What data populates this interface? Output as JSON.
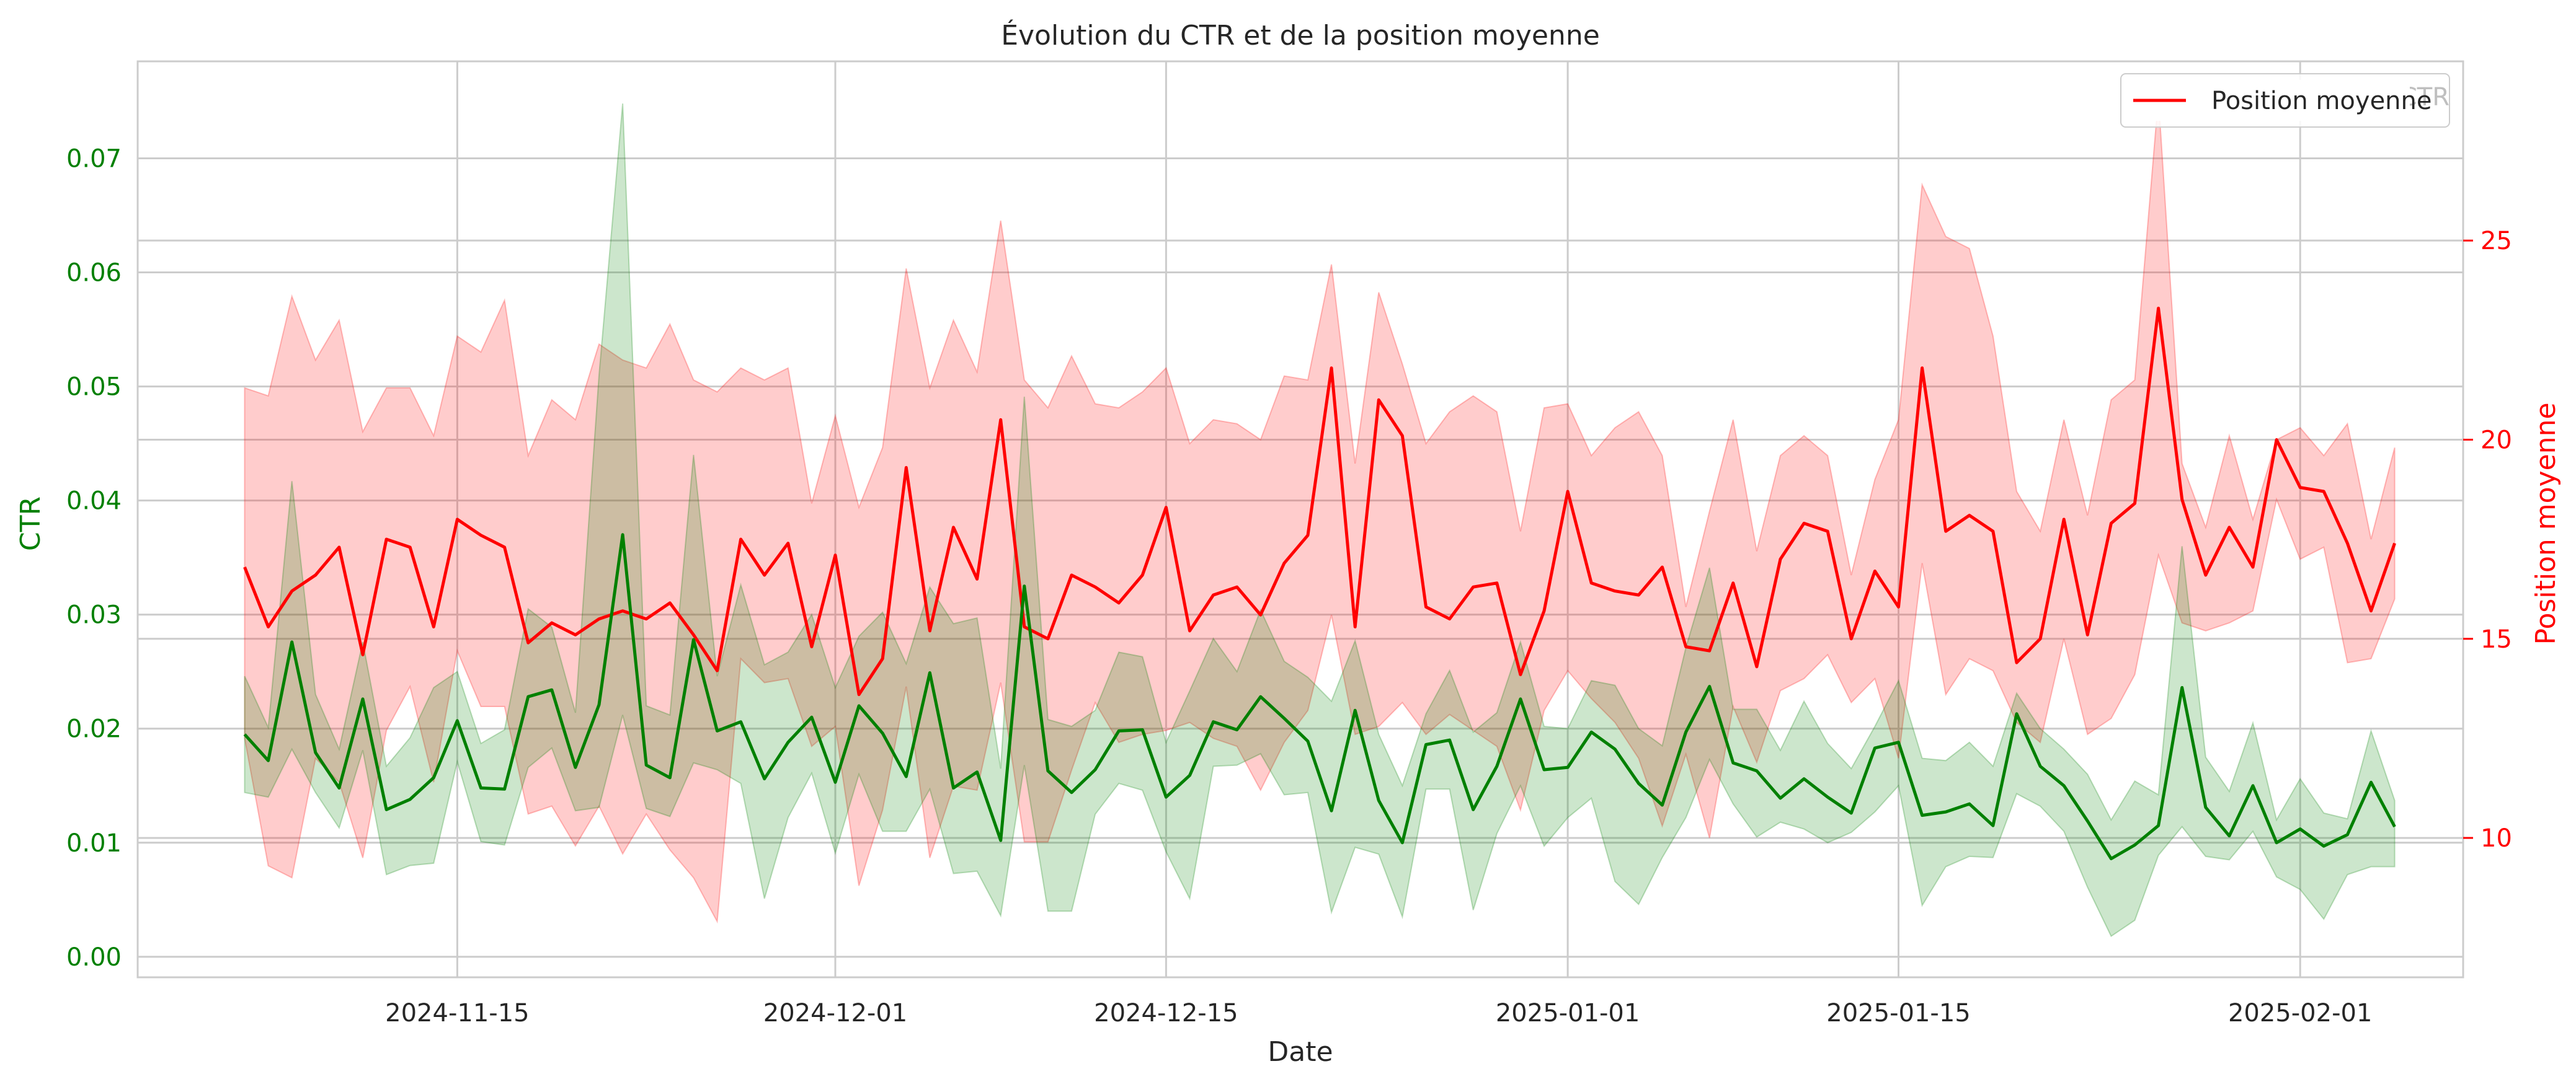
{
  "chart_data": {
    "type": "line",
    "title": "Évolution du CTR et de la position moyenne",
    "xlabel": "Date",
    "ylabel_left": "CTR",
    "ylabel_right": "Position moyenne",
    "x_ticks": [
      "2024-11-15",
      "2024-12-01",
      "2024-12-15",
      "2025-01-01",
      "2025-01-15",
      "2025-02-01"
    ],
    "y_left_ticks": [
      "0.00",
      "0.01",
      "0.02",
      "0.03",
      "0.04",
      "0.05",
      "0.06",
      "0.07"
    ],
    "y_right_ticks": [
      "10",
      "15",
      "20",
      "25"
    ],
    "ylim_left": [
      -0.0018,
      0.0785
    ],
    "ylim_right": [
      6.5,
      29.5
    ],
    "grid": true,
    "legend": {
      "position": "top-right",
      "entries": [
        "Position moyenne",
        "CTR"
      ]
    },
    "colors": {
      "ctr": "#008000",
      "position": "#ff0000",
      "axis": "#cccccc",
      "text": "#262626"
    },
    "start_date": "2024-11-06",
    "series": [
      {
        "name": "CTR",
        "axis": "left",
        "values": [
          0.0195,
          0.0172,
          0.0276,
          0.0179,
          0.0148,
          0.0226,
          0.0129,
          0.0138,
          0.0157,
          0.0207,
          0.0148,
          0.0147,
          0.0228,
          0.0234,
          0.0166,
          0.0221,
          0.037,
          0.0168,
          0.0157,
          0.0278,
          0.0198,
          0.0206,
          0.0156,
          0.0188,
          0.021,
          0.0153,
          0.022,
          0.0196,
          0.0158,
          0.0249,
          0.0148,
          0.0162,
          0.0102,
          0.0325,
          0.0163,
          0.0144,
          0.0164,
          0.0198,
          0.0199,
          0.014,
          0.0159,
          0.0206,
          0.0199,
          0.0228,
          0.0209,
          0.0189,
          0.0128,
          0.0216,
          0.0137,
          0.01,
          0.0186,
          0.019,
          0.0129,
          0.0167,
          0.0226,
          0.0164,
          0.0166,
          0.0197,
          0.0182,
          0.0152,
          0.0133,
          0.0197,
          0.0237,
          0.017,
          0.0163,
          0.0139,
          0.0156,
          0.014,
          0.0126,
          0.0183,
          0.0188,
          0.0124,
          0.0127,
          0.0134,
          0.0115,
          0.0213,
          0.0167,
          0.015,
          0.0119,
          0.0086,
          0.0098,
          0.0115,
          0.0236,
          0.0131,
          0.0106,
          0.015,
          0.01,
          0.0112,
          0.0097,
          0.0107,
          0.0153,
          0.0114
        ],
        "band_upper": [
          0.0246,
          0.0201,
          0.0417,
          0.023,
          0.0182,
          0.0276,
          0.0167,
          0.0192,
          0.0236,
          0.025,
          0.0187,
          0.0199,
          0.0305,
          0.0289,
          0.0214,
          0.051,
          0.0748,
          0.022,
          0.0212,
          0.044,
          0.0246,
          0.0326,
          0.0256,
          0.0267,
          0.03,
          0.0236,
          0.0281,
          0.0302,
          0.0257,
          0.0324,
          0.0292,
          0.0297,
          0.0165,
          0.0491,
          0.0208,
          0.0202,
          0.0216,
          0.0267,
          0.0263,
          0.0188,
          0.0233,
          0.0279,
          0.025,
          0.0304,
          0.0259,
          0.0245,
          0.0224,
          0.0277,
          0.0195,
          0.015,
          0.0213,
          0.0251,
          0.0197,
          0.0214,
          0.0276,
          0.0202,
          0.02,
          0.0242,
          0.0238,
          0.02,
          0.0185,
          0.0271,
          0.0341,
          0.0217,
          0.0217,
          0.0181,
          0.0224,
          0.0187,
          0.0165,
          0.0202,
          0.0242,
          0.0174,
          0.0172,
          0.0188,
          0.0167,
          0.0231,
          0.02,
          0.0182,
          0.016,
          0.012,
          0.0154,
          0.0142,
          0.036,
          0.0175,
          0.0145,
          0.0205,
          0.012,
          0.0156,
          0.0126,
          0.0121,
          0.0198,
          0.0137
        ],
        "band_lower": [
          0.0144,
          0.014,
          0.0182,
          0.0144,
          0.0113,
          0.0181,
          0.0072,
          0.008,
          0.0082,
          0.0171,
          0.0101,
          0.0098,
          0.0166,
          0.0183,
          0.0128,
          0.0131,
          0.0212,
          0.013,
          0.0123,
          0.017,
          0.0164,
          0.0152,
          0.0051,
          0.0122,
          0.0161,
          0.0091,
          0.016,
          0.011,
          0.011,
          0.0147,
          0.0073,
          0.0075,
          0.0036,
          0.0168,
          0.004,
          0.004,
          0.0125,
          0.0152,
          0.0146,
          0.0092,
          0.0051,
          0.0167,
          0.0168,
          0.0178,
          0.0142,
          0.0144,
          0.0039,
          0.0096,
          0.009,
          0.0035,
          0.0147,
          0.0147,
          0.0041,
          0.0108,
          0.015,
          0.0097,
          0.0122,
          0.0139,
          0.0066,
          0.0046,
          0.0087,
          0.0122,
          0.0173,
          0.0134,
          0.0105,
          0.0118,
          0.0112,
          0.01,
          0.0109,
          0.0127,
          0.015,
          0.0045,
          0.0079,
          0.0088,
          0.0087,
          0.0143,
          0.0132,
          0.011,
          0.0061,
          0.0018,
          0.0032,
          0.0089,
          0.0114,
          0.0088,
          0.0085,
          0.011,
          0.007,
          0.0059,
          0.0033,
          0.0072,
          0.0079,
          0.0079
        ]
      },
      {
        "name": "Position moyenne",
        "axis": "right",
        "values": [
          16.8,
          15.3,
          16.2,
          16.6,
          17.3,
          14.6,
          17.5,
          17.3,
          15.3,
          18.0,
          17.6,
          17.3,
          14.9,
          15.4,
          15.1,
          15.5,
          15.7,
          15.5,
          15.9,
          15.1,
          14.2,
          17.5,
          16.6,
          17.4,
          14.8,
          17.1,
          13.6,
          14.5,
          19.3,
          15.2,
          17.8,
          16.5,
          20.5,
          15.3,
          15.0,
          16.6,
          16.3,
          15.9,
          16.6,
          18.3,
          15.2,
          16.1,
          16.3,
          15.6,
          16.9,
          17.6,
          21.8,
          15.3,
          21.0,
          20.1,
          15.8,
          15.5,
          16.3,
          16.4,
          14.1,
          15.7,
          18.7,
          16.4,
          16.2,
          16.1,
          16.8,
          14.8,
          14.7,
          16.4,
          14.3,
          17.0,
          17.9,
          17.7,
          15.0,
          16.7,
          15.8,
          21.8,
          17.7,
          18.1,
          17.7,
          14.4,
          15.0,
          18.0,
          15.1,
          17.9,
          18.4,
          23.3,
          18.5,
          16.6,
          17.8,
          16.8,
          20.0,
          18.8,
          18.7,
          17.4,
          15.7,
          17.4
        ],
        "band_upper": [
          21.3,
          21.1,
          23.6,
          22.0,
          23.0,
          20.2,
          21.3,
          21.3,
          20.1,
          22.6,
          22.2,
          23.5,
          19.6,
          21.0,
          20.5,
          22.4,
          22.0,
          21.8,
          22.9,
          21.5,
          21.2,
          21.8,
          21.5,
          21.8,
          18.4,
          20.6,
          18.3,
          19.8,
          24.3,
          21.3,
          23.0,
          21.7,
          25.5,
          21.5,
          20.8,
          22.1,
          20.9,
          20.8,
          21.2,
          21.8,
          19.9,
          20.5,
          20.4,
          20.0,
          21.6,
          21.5,
          24.4,
          19.4,
          23.7,
          21.9,
          19.9,
          20.7,
          21.1,
          20.7,
          17.7,
          20.8,
          20.9,
          19.6,
          20.3,
          20.7,
          19.6,
          15.8,
          18.2,
          20.5,
          17.2,
          19.6,
          20.1,
          19.6,
          16.6,
          19.0,
          20.5,
          26.4,
          25.1,
          24.8,
          22.6,
          18.7,
          17.7,
          20.5,
          18.1,
          21.0,
          21.5,
          28.6,
          19.4,
          17.8,
          20.1,
          18.0,
          20.0,
          20.3,
          19.6,
          20.4,
          17.5,
          19.8
        ],
        "band_lower": [
          12.5,
          9.3,
          9.0,
          12.0,
          11.4,
          9.5,
          12.7,
          13.8,
          11.4,
          14.7,
          13.3,
          13.3,
          10.6,
          10.8,
          9.8,
          10.8,
          9.6,
          10.6,
          9.7,
          9.0,
          7.9,
          14.5,
          13.9,
          14.0,
          12.3,
          12.8,
          8.8,
          10.7,
          13.8,
          9.5,
          11.3,
          11.2,
          13.9,
          9.9,
          9.9,
          11.7,
          13.4,
          12.4,
          12.6,
          12.7,
          12.9,
          12.5,
          12.3,
          11.2,
          12.4,
          13.2,
          15.6,
          12.6,
          12.8,
          13.4,
          12.6,
          13.1,
          12.7,
          12.3,
          10.7,
          13.2,
          14.2,
          13.5,
          12.9,
          12.0,
          10.3,
          12.1,
          10.0,
          13.3,
          11.9,
          13.7,
          14.0,
          14.6,
          13.4,
          14.0,
          12.0,
          16.9,
          13.6,
          14.5,
          14.2,
          12.9,
          12.4,
          15.0,
          12.6,
          13.0,
          14.1,
          17.1,
          15.4,
          15.2,
          15.4,
          15.7,
          18.5,
          17.0,
          17.3,
          14.4,
          14.5,
          16.0
        ]
      }
    ]
  }
}
